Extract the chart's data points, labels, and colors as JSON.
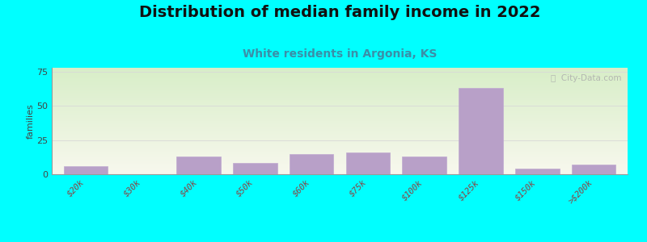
{
  "title": "Distribution of median family income in 2022",
  "subtitle": "White residents in Argonia, KS",
  "ylabel": "families",
  "background_color": "#00FFFF",
  "bar_color": "#b8a0c8",
  "bar_edgecolor": "#c0aad0",
  "categories": [
    "$20k",
    "$30k",
    "$40k",
    "$50k",
    "$60k",
    "$75k",
    "$100k",
    "$125k",
    "$150k",
    ">$200k"
  ],
  "values": [
    6,
    0,
    13,
    8,
    15,
    16,
    13,
    63,
    4,
    7
  ],
  "ylim": [
    0,
    78
  ],
  "yticks": [
    0,
    25,
    50,
    75
  ],
  "title_fontsize": 14,
  "subtitle_fontsize": 10,
  "subtitle_color": "#3a8fa8",
  "watermark_text": "ⓘ  City-Data.com",
  "grid_color": "#d8d8d8",
  "ylabel_fontsize": 8,
  "tick_label_color": "#884444",
  "plot_bg_top": "#d8eec8",
  "plot_bg_bottom": "#f8f8ee"
}
